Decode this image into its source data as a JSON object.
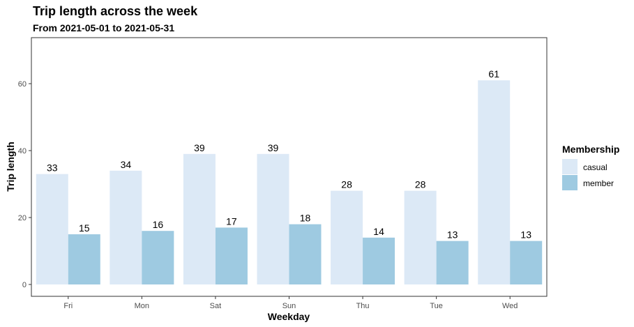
{
  "chart_data": {
    "type": "bar",
    "title": "Trip length across the week",
    "subtitle": "From 2021-05-01 to 2021-05-31",
    "xlabel": "Weekday",
    "ylabel": "Trip length",
    "categories": [
      "Fri",
      "Mon",
      "Sat",
      "Sun",
      "Thu",
      "Tue",
      "Wed"
    ],
    "series": [
      {
        "name": "casual",
        "values": [
          33,
          34,
          39,
          39,
          28,
          28,
          61
        ],
        "color": "#dce9f6"
      },
      {
        "name": "member",
        "values": [
          15,
          16,
          17,
          18,
          14,
          13,
          13
        ],
        "color": "#9ecae1"
      }
    ],
    "ylim": [
      0,
      72
    ],
    "yticks": [
      0,
      20,
      40,
      60
    ],
    "grid": false,
    "legend": {
      "title": "Membership",
      "position": "right"
    }
  }
}
